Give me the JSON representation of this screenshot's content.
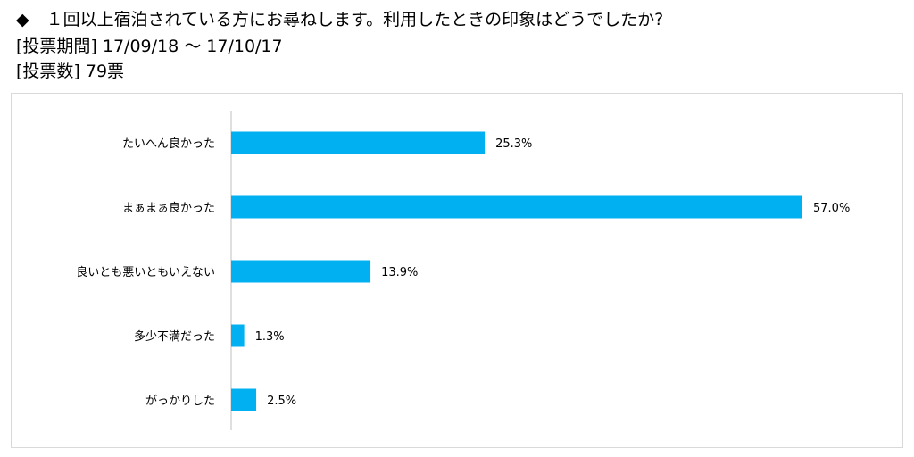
{
  "header": {
    "question": "◆　１回以上宿泊されている方にお尋ねします。利用したときの印象はどうでしたか?",
    "period": "[投票期間] 17/09/18 ～ 17/10/17",
    "votes": "[投票数] 79票"
  },
  "chart_data": {
    "type": "bar",
    "orientation": "horizontal",
    "categories": [
      "たいへん良かった",
      "まぁまぁ良かった",
      "良いとも悪いともいえない",
      "多少不満だった",
      "がっかりした"
    ],
    "values": [
      25.3,
      57.0,
      13.9,
      1.3,
      2.5
    ],
    "value_labels": [
      "25.3%",
      "57.0%",
      "13.9%",
      "1.3%",
      "2.5%"
    ],
    "xlim": [
      0,
      57.0
    ],
    "grid": false,
    "bar_color": "#00b0f0"
  }
}
